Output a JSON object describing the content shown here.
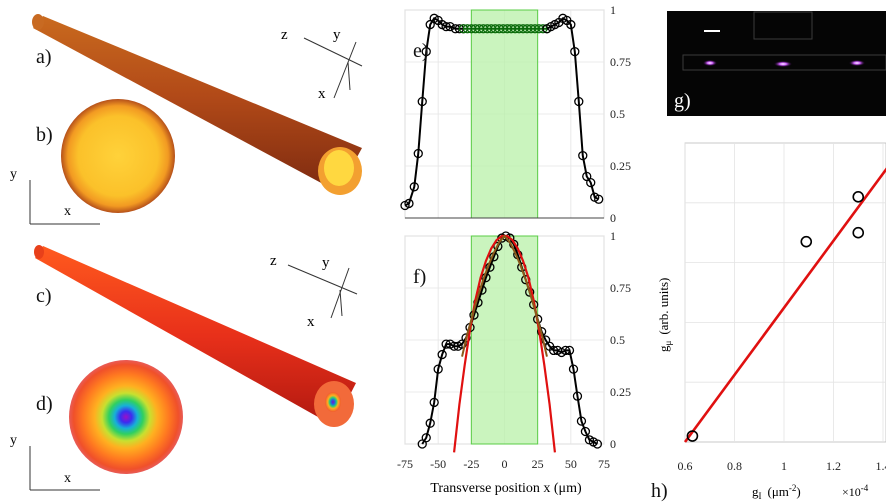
{
  "figure": {
    "panels": {
      "a": "a)",
      "b": "b)",
      "c": "c)",
      "d": "d)",
      "e": "e)",
      "f": "f)",
      "g": "g)",
      "h": "h)"
    },
    "axes_triad": {
      "x": "x",
      "y": "y",
      "z": "z"
    }
  },
  "chart_data": [
    {
      "id": "e",
      "type": "line",
      "xlim": [
        -75,
        75
      ],
      "ylim": [
        0,
        1
      ],
      "yticks": [
        "0",
        "0.25",
        "0.5",
        "0.75",
        "1"
      ],
      "yticks_val": [
        0,
        0.25,
        0.5,
        0.75,
        1
      ],
      "shaded_region": [
        -25,
        25
      ],
      "series": [
        {
          "x": [
            -75,
            -72,
            -68,
            -65,
            -62,
            -59,
            -56,
            -53,
            -50,
            -47,
            -44,
            -41,
            -37,
            -34,
            -31
          ],
          "y": [
            0.06,
            0.07,
            0.15,
            0.31,
            0.56,
            0.8,
            0.93,
            0.96,
            0.95,
            0.93,
            0.92,
            0.92,
            0.91,
            0.91,
            0.91
          ]
        },
        {
          "x": [
            -31,
            -28,
            -25,
            -22,
            -19,
            -16,
            -13,
            -10,
            -7,
            -4,
            -1,
            2,
            5,
            8,
            11,
            14,
            17,
            20,
            23,
            26,
            29,
            32
          ],
          "y": [
            0.91,
            0.91,
            0.91,
            0.91,
            0.91,
            0.91,
            0.91,
            0.91,
            0.91,
            0.91,
            0.91,
            0.91,
            0.91,
            0.91,
            0.91,
            0.91,
            0.91,
            0.91,
            0.91,
            0.91,
            0.91,
            0.91
          ]
        },
        {
          "x": [
            32,
            35,
            38,
            41,
            44,
            47,
            50,
            53,
            56,
            59,
            62,
            65,
            68,
            71
          ],
          "y": [
            0.91,
            0.92,
            0.93,
            0.94,
            0.96,
            0.95,
            0.93,
            0.8,
            0.56,
            0.3,
            0.2,
            0.17,
            0.1,
            0.09
          ]
        }
      ]
    },
    {
      "id": "f",
      "type": "line",
      "xlim": [
        -75,
        75
      ],
      "ylim": [
        0,
        1
      ],
      "xticks": [
        "-75",
        "-50",
        "-25",
        "0",
        "25",
        "50",
        "75"
      ],
      "xticks_val": [
        -75,
        -50,
        -25,
        0,
        25,
        50,
        75
      ],
      "yticks": [
        "0",
        "0.25",
        "0.5",
        "0.75",
        "1"
      ],
      "yticks_val": [
        0,
        0.25,
        0.5,
        0.75,
        1
      ],
      "xlabel": "Transverse position x (μm)",
      "shaded_region": [
        -25,
        25
      ],
      "series": [
        {
          "x": [
            -62,
            -59,
            -56,
            -53,
            -50,
            -47,
            -44,
            -41,
            -38,
            -35,
            -32,
            -29,
            -26,
            -23,
            -20,
            -17,
            -14,
            -11,
            -8,
            -5,
            -2,
            1,
            4,
            7,
            10,
            13,
            16,
            19,
            22,
            25,
            28,
            31,
            34,
            37,
            40,
            43,
            46,
            49,
            52,
            55,
            58,
            61,
            64,
            67,
            70
          ],
          "y": [
            0,
            0.03,
            0.1,
            0.2,
            0.36,
            0.43,
            0.48,
            0.48,
            0.47,
            0.47,
            0.48,
            0.51,
            0.56,
            0.62,
            0.68,
            0.74,
            0.8,
            0.85,
            0.9,
            0.95,
            0.99,
            1.0,
            0.99,
            0.96,
            0.91,
            0.85,
            0.79,
            0.73,
            0.67,
            0.6,
            0.54,
            0.5,
            0.47,
            0.45,
            0.45,
            0.44,
            0.45,
            0.45,
            0.36,
            0.23,
            0.11,
            0.06,
            0.02,
            0.01,
            0.0
          ]
        },
        {
          "x": [
            -38,
            -34,
            -30,
            -26,
            -22,
            -18,
            -14,
            -10,
            -6,
            -2,
            2,
            6,
            10,
            14,
            18,
            22,
            26,
            30,
            34,
            38
          ],
          "y": [
            -0.04,
            0.19,
            0.38,
            0.55,
            0.69,
            0.8,
            0.88,
            0.94,
            0.98,
            1.0,
            1.0,
            0.98,
            0.94,
            0.88,
            0.8,
            0.69,
            0.55,
            0.38,
            0.19,
            -0.04
          ]
        },
        {
          "x": [
            -32,
            -28,
            -24,
            -20,
            -16,
            -12,
            -8,
            -4,
            0,
            4,
            8,
            12,
            16,
            20,
            24,
            28,
            32
          ],
          "y": [
            0.42,
            0.53,
            0.62,
            0.71,
            0.79,
            0.86,
            0.92,
            0.97,
            1.0,
            0.97,
            0.92,
            0.86,
            0.79,
            0.71,
            0.62,
            0.53,
            0.42
          ]
        }
      ]
    },
    {
      "id": "h",
      "type": "scatter",
      "xlim": [
        0.6,
        1.4
      ],
      "ylim": [
        0,
        1
      ],
      "xticks": [
        "0.6",
        "0.8",
        "1",
        "1.2",
        "1.4"
      ],
      "xticks_val": [
        0.6,
        0.8,
        1.0,
        1.2,
        1.4
      ],
      "xlabel": "g",
      "xlabel_sub": "I",
      "xlabel_unit": "(μm",
      "xlabel_unit_sup": "-2",
      "xlabel_unit_end": ")",
      "x_multiplier": "×10",
      "x_multiplier_exp": "-4",
      "ylabel": "g",
      "ylabel_sub": "μ",
      "ylabel_unit": "(arb. units)",
      "points": {
        "x": [
          0.63,
          1.09,
          1.3,
          1.3
        ],
        "y": [
          0.02,
          0.67,
          0.82,
          0.7
        ]
      },
      "fit_line": {
        "x": [
          0.6,
          1.42
        ],
        "y": [
          0.0,
          0.92
        ]
      }
    }
  ]
}
